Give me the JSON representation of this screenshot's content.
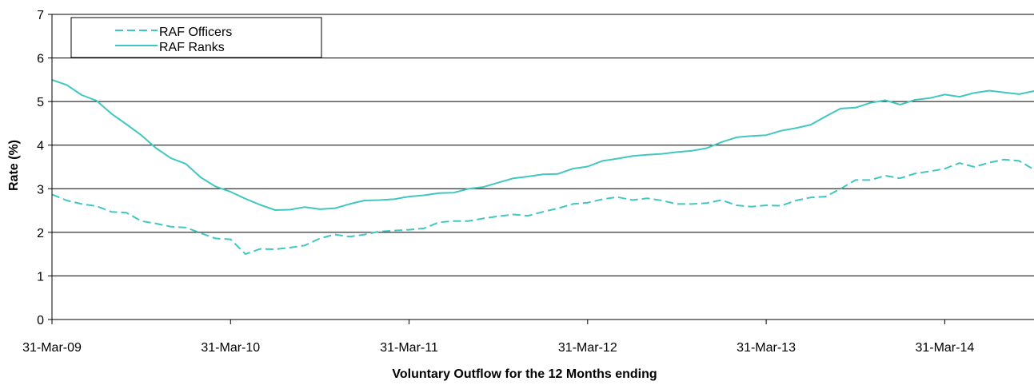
{
  "chart_data": {
    "type": "line",
    "title": "",
    "xlabel": "Voluntary Outflow for the 12 Months ending",
    "ylabel": "Rate (%)",
    "ylim": [
      0,
      7
    ],
    "y_ticks": [
      "0",
      "1",
      "2",
      "3",
      "4",
      "5",
      "6",
      "7"
    ],
    "x_ticks": [
      {
        "label": "31-Mar-09",
        "month": 0
      },
      {
        "label": "31-Mar-10",
        "month": 12
      },
      {
        "label": "31-Mar-11",
        "month": 24
      },
      {
        "label": "31-Mar-12",
        "month": 36
      },
      {
        "label": "31-Mar-13",
        "month": 48
      },
      {
        "label": "31-Mar-14",
        "month": 60
      }
    ],
    "x_range_months": [
      0,
      66
    ],
    "grid": "horizontal",
    "legend_position": "top-left",
    "series": [
      {
        "name": "RAF Officers",
        "style": "dashed",
        "color": "#40C8C0",
        "values": [
          2.87,
          2.73,
          2.65,
          2.6,
          2.47,
          2.45,
          2.26,
          2.2,
          2.13,
          2.11,
          1.98,
          1.86,
          1.84,
          1.5,
          1.62,
          1.61,
          1.65,
          1.7,
          1.86,
          1.95,
          1.9,
          1.95,
          2.02,
          2.04,
          2.06,
          2.09,
          2.23,
          2.26,
          2.26,
          2.32,
          2.37,
          2.41,
          2.38,
          2.47,
          2.55,
          2.65,
          2.68,
          2.76,
          2.81,
          2.74,
          2.78,
          2.73,
          2.65,
          2.65,
          2.67,
          2.74,
          2.62,
          2.59,
          2.62,
          2.61,
          2.73,
          2.8,
          2.82,
          3.0,
          3.2,
          3.2,
          3.3,
          3.24,
          3.35,
          3.4,
          3.46,
          3.59,
          3.5,
          3.6,
          3.67,
          3.64,
          3.44,
          3.45,
          3.48,
          3.65
        ]
      },
      {
        "name": "RAF Ranks",
        "style": "solid",
        "color": "#40C8C0",
        "values": [
          5.5,
          5.38,
          5.15,
          5.02,
          4.72,
          4.48,
          4.23,
          3.93,
          3.7,
          3.57,
          3.26,
          3.05,
          2.93,
          2.77,
          2.63,
          2.51,
          2.52,
          2.58,
          2.53,
          2.55,
          2.65,
          2.73,
          2.74,
          2.76,
          2.82,
          2.85,
          2.9,
          2.91,
          3.0,
          3.04,
          3.14,
          3.24,
          3.28,
          3.33,
          3.34,
          3.46,
          3.51,
          3.64,
          3.69,
          3.75,
          3.78,
          3.8,
          3.84,
          3.87,
          3.93,
          4.07,
          4.18,
          4.21,
          4.23,
          4.33,
          4.39,
          4.47,
          4.66,
          4.84,
          4.86,
          4.97,
          5.03,
          4.93,
          5.04,
          5.08,
          5.16,
          5.11,
          5.2,
          5.25,
          5.21,
          5.17,
          5.24,
          5.28,
          5.29,
          5.3
        ]
      }
    ]
  }
}
